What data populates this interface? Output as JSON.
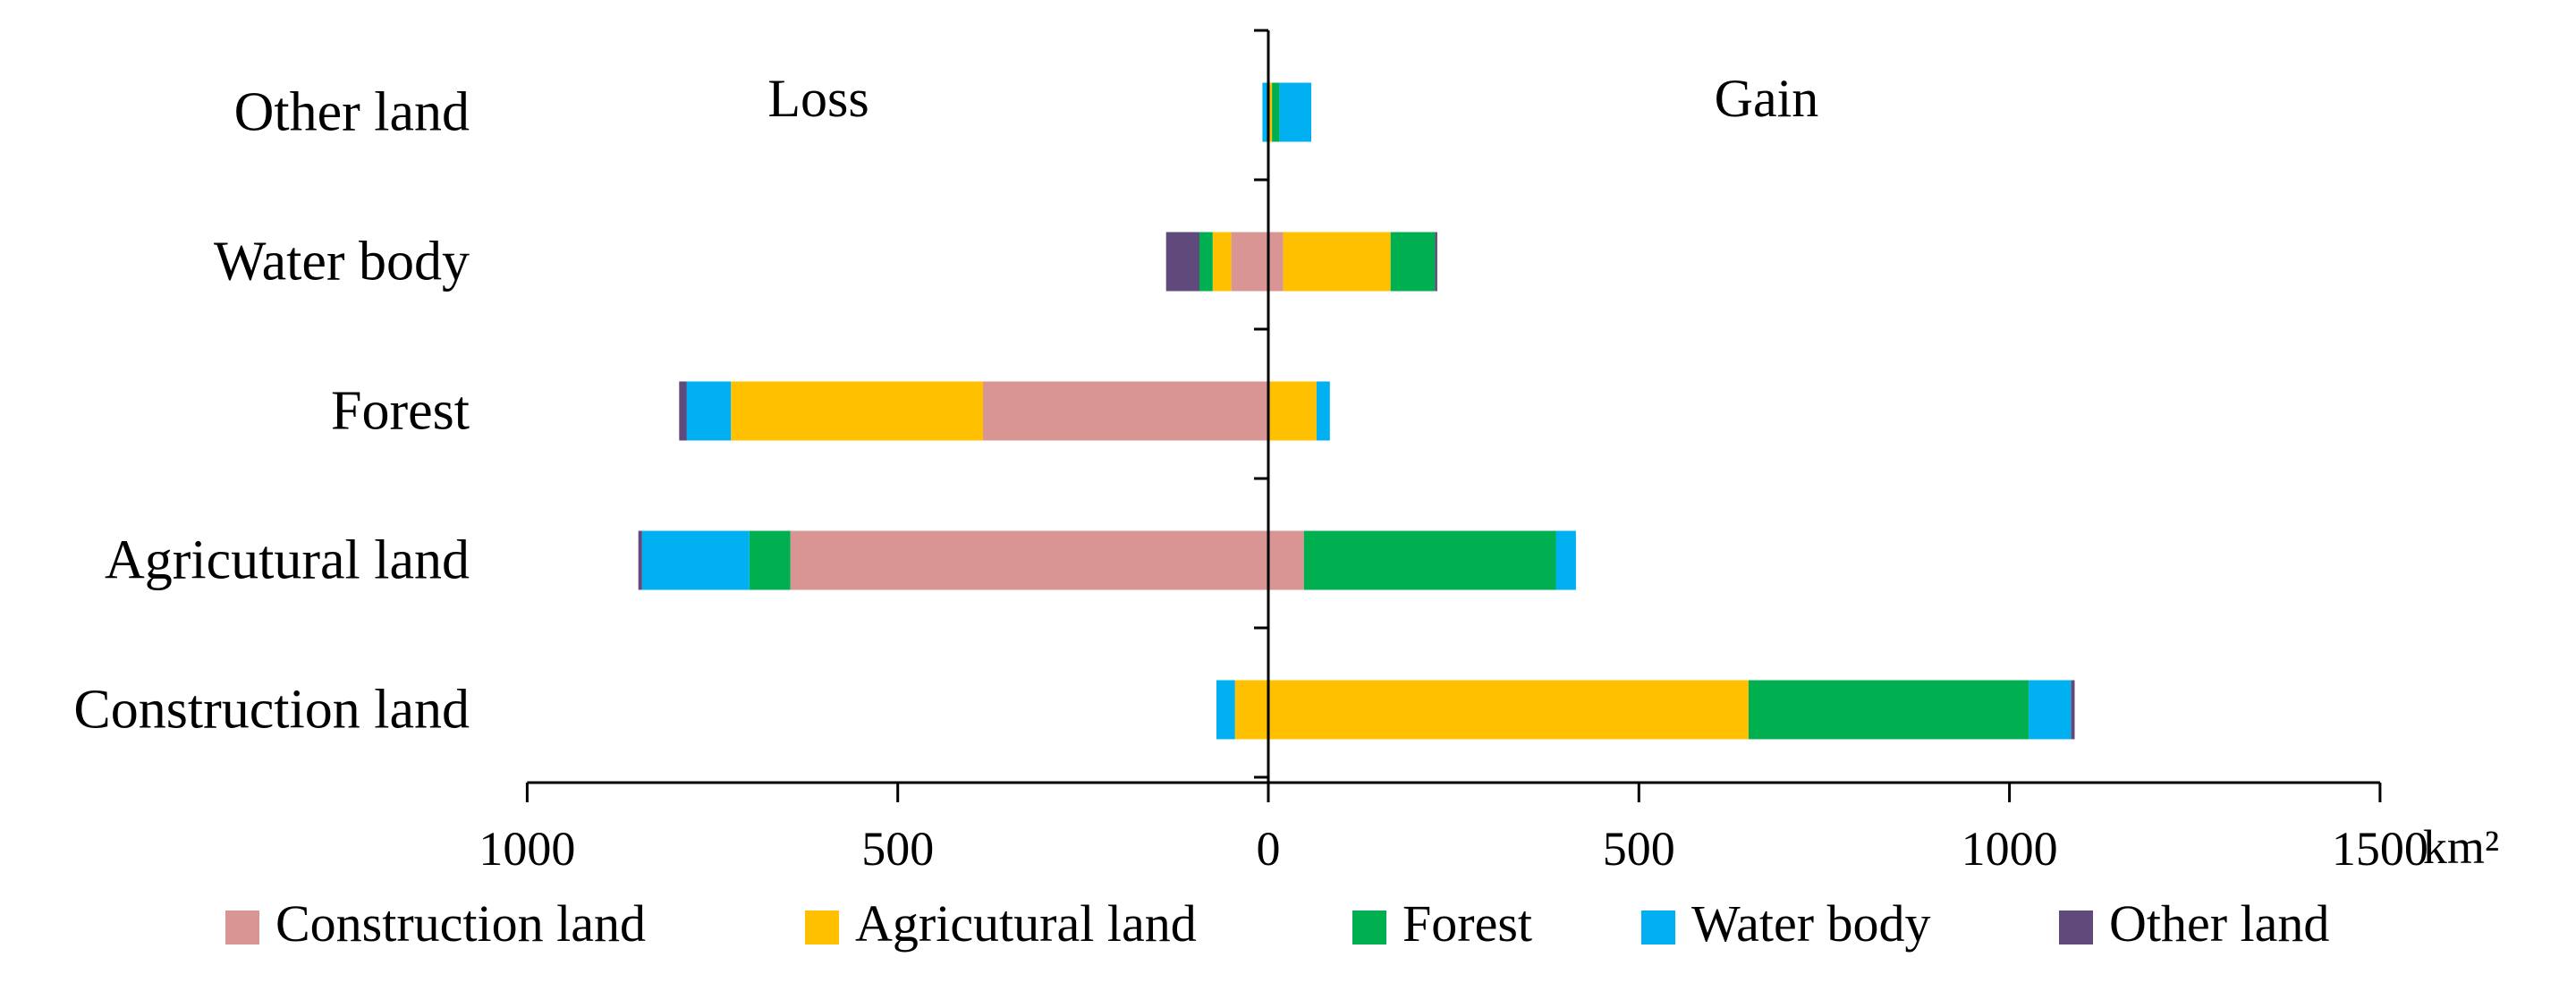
{
  "chart_data": {
    "type": "bar",
    "orientation": "horizontal",
    "stacked": true,
    "diverging": true,
    "categories": [
      "Other land",
      "Water body",
      "Forest",
      "Agricutural land",
      "Construction land"
    ],
    "region_labels": {
      "left": "Loss",
      "right": "Gain"
    },
    "x_ticks": [
      "1000",
      "500",
      "0",
      "500",
      "1000",
      "1500"
    ],
    "x_unit": "km²",
    "xlim": [
      -1000,
      1500
    ],
    "grid": false,
    "legend_position": "bottom",
    "series": [
      {
        "name": "Construction land",
        "color": "#D99594",
        "loss": [
          0,
          50,
          385,
          645,
          0
        ],
        "gain": [
          0,
          20,
          0,
          48,
          0
        ]
      },
      {
        "name": "Agricutural land",
        "color": "#FFC000",
        "loss": [
          0,
          25,
          340,
          0,
          45
        ],
        "gain": [
          5,
          145,
          65,
          0,
          648
        ]
      },
      {
        "name": "Forest",
        "color": "#00B050",
        "loss": [
          0,
          18,
          0,
          55,
          0
        ],
        "gain": [
          10,
          60,
          0,
          340,
          378
        ]
      },
      {
        "name": "Water body",
        "color": "#00B0F0",
        "loss": [
          8,
          0,
          60,
          145,
          25
        ],
        "gain": [
          43,
          0,
          18,
          27,
          57
        ]
      },
      {
        "name": "Other land",
        "color": "#604A7B",
        "loss": [
          0,
          45,
          10,
          5,
          0
        ],
        "gain": [
          0,
          3,
          0,
          0,
          5
        ]
      }
    ]
  }
}
